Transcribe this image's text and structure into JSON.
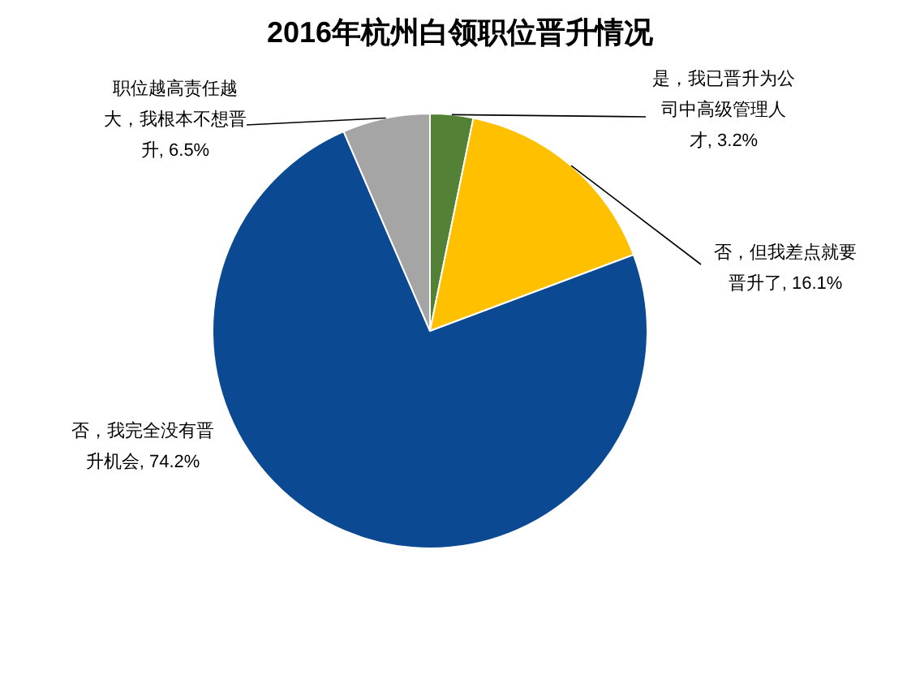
{
  "chart_data": {
    "type": "pie",
    "title": "2016年杭州白领职位晋升情况",
    "categories": [
      "是，我已晋升为公司中高级管理人才",
      "否，但我差点就要晋升了",
      "否，我完全没有晋升机会",
      "职位越高责任越大，我根本不想晋升"
    ],
    "values": [
      3.2,
      16.1,
      74.2,
      6.5
    ],
    "value_labels": [
      "3.2%",
      "16.1%",
      "74.2%",
      "6.5%"
    ],
    "colors": [
      "#538135",
      "#ffc000",
      "#0b4a92",
      "#a5a5a5"
    ]
  }
}
